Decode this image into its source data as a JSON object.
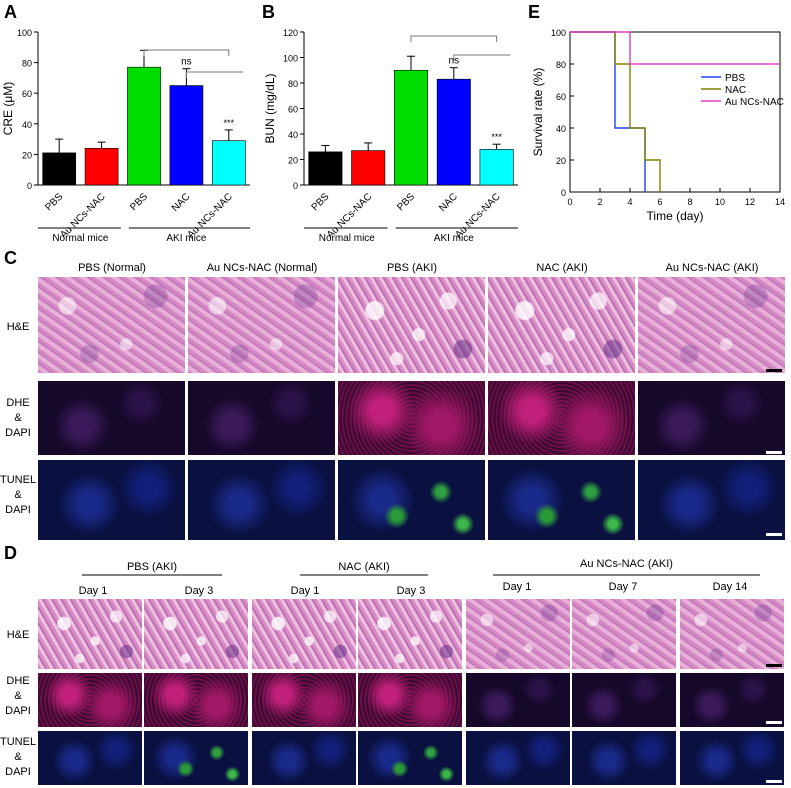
{
  "panels": {
    "A": "A",
    "B": "B",
    "C": "C",
    "D": "D",
    "E": "E"
  },
  "chart_data": [
    {
      "type": "bar",
      "panel": "A",
      "ylabel": "CRE (μM)",
      "ylim": [
        0,
        100
      ],
      "yticks": [
        "0",
        "20",
        "40",
        "60",
        "80",
        "100"
      ],
      "categories": [
        "PBS",
        "Au NCs-NAC",
        "PBS",
        "NAC",
        "Au NCs-NAC"
      ],
      "values": [
        21,
        24,
        77,
        65,
        29
      ],
      "errors": [
        9,
        4,
        11,
        11,
        7
      ],
      "colors": [
        "#000000",
        "#ff0000",
        "#00dd00",
        "#0000ff",
        "#00ffff"
      ],
      "annotations": [
        "ns",
        "***"
      ],
      "groups": [
        "Normal mice",
        "AKI mice"
      ]
    },
    {
      "type": "bar",
      "panel": "B",
      "ylabel": "BUN (mg/dL)",
      "ylim": [
        0,
        120
      ],
      "yticks": [
        "0",
        "20",
        "40",
        "60",
        "80",
        "100",
        "120"
      ],
      "categories": [
        "PBS",
        "Au NCs-NAC",
        "PBS",
        "NAC",
        "Au NCs-NAC"
      ],
      "values": [
        26,
        27,
        90,
        83,
        28
      ],
      "errors": [
        5,
        6,
        11,
        9,
        4
      ],
      "colors": [
        "#000000",
        "#ff0000",
        "#00dd00",
        "#0000ff",
        "#00ffff"
      ],
      "annotations": [
        "ns",
        "***"
      ],
      "groups": [
        "Normal mice",
        "AKI mice"
      ]
    },
    {
      "type": "line",
      "panel": "E",
      "xlabel": "Time (day)",
      "ylabel": "Survival rate (%)",
      "xlim": [
        0,
        14
      ],
      "ylim": [
        0,
        100
      ],
      "xticks": [
        "0",
        "2",
        "4",
        "6",
        "8",
        "10",
        "12",
        "14"
      ],
      "yticks": [
        "0",
        "20",
        "40",
        "60",
        "80",
        "100"
      ],
      "series": [
        {
          "name": "PBS",
          "color": "#2040ff",
          "points": [
            [
              0,
              100
            ],
            [
              3,
              100
            ],
            [
              3,
              40
            ],
            [
              4,
              40
            ],
            [
              4,
              40
            ],
            [
              5,
              40
            ],
            [
              5,
              20
            ],
            [
              5,
              0
            ]
          ]
        },
        {
          "name": "NAC",
          "color": "#808000",
          "points": [
            [
              0,
              100
            ],
            [
              3,
              100
            ],
            [
              3,
              80
            ],
            [
              4,
              80
            ],
            [
              4,
              40
            ],
            [
              5,
              40
            ],
            [
              5,
              20
            ],
            [
              6,
              20
            ],
            [
              6,
              0
            ]
          ]
        },
        {
          "name": "Au NCs-NAC",
          "color": "#e040c0",
          "points": [
            [
              0,
              100
            ],
            [
              4,
              100
            ],
            [
              4,
              80
            ],
            [
              14,
              80
            ]
          ]
        }
      ]
    }
  ],
  "panelC": {
    "columns": [
      "PBS (Normal)",
      "Au NCs-NAC (Normal)",
      "PBS (AKI)",
      "NAC (AKI)",
      "Au NCs-NAC (AKI)"
    ],
    "rows": [
      {
        "l1": "H&E",
        "l2": "",
        "l3": ""
      },
      {
        "l1": "DHE",
        "l2": "&",
        "l3": "DAPI"
      },
      {
        "l1": "TUNEL",
        "l2": "&",
        "l3": "DAPI"
      }
    ]
  },
  "panelD": {
    "groups": [
      "PBS (AKI)",
      "NAC (AKI)",
      "Au NCs-NAC (AKI)"
    ],
    "days": [
      "Day 1",
      "Day 3",
      "Day 1",
      "Day 3",
      "Day 1",
      "Day 7",
      "Day 14"
    ],
    "rows": [
      {
        "l1": "H&E",
        "l2": "",
        "l3": ""
      },
      {
        "l1": "DHE",
        "l2": "&",
        "l3": "DAPI"
      },
      {
        "l1": "TUNEL",
        "l2": "&",
        "l3": "DAPI"
      }
    ]
  }
}
